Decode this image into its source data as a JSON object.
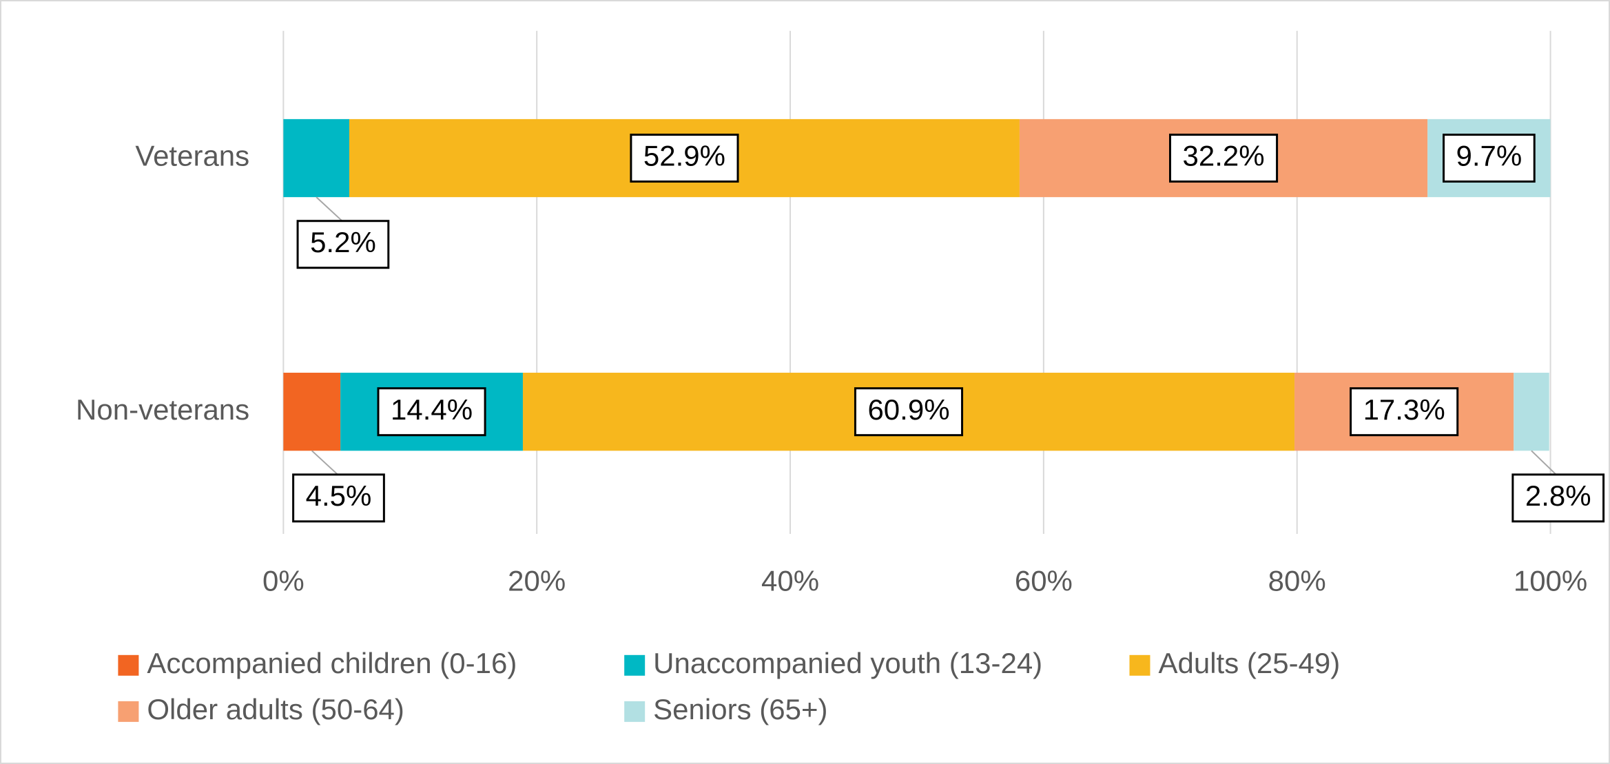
{
  "chart_data": {
    "type": "stacked-bar-horizontal",
    "categories": [
      "Veterans",
      "Non-veterans"
    ],
    "series": [
      {
        "name": "Accompanied children (0-16)",
        "color": "#F26522",
        "values": [
          0,
          4.5
        ],
        "value_labels": [
          null,
          "4.5%"
        ]
      },
      {
        "name": "Unaccompanied youth (13-24)",
        "color": "#00B8C4",
        "values": [
          5.2,
          14.4
        ],
        "value_labels": [
          "5.2%",
          "14.4%"
        ]
      },
      {
        "name": "Adults (25-49)",
        "color": "#F7B71D",
        "values": [
          52.9,
          60.9
        ],
        "value_labels": [
          "52.9%",
          "60.9%"
        ]
      },
      {
        "name": "Older adults (50-64)",
        "color": "#F7A072",
        "values": [
          32.2,
          17.3
        ],
        "value_labels": [
          "32.2%",
          "17.3%"
        ]
      },
      {
        "name": "Seniors (65+)",
        "color": "#B2E0E3",
        "values": [
          9.7,
          2.8
        ],
        "value_labels": [
          "9.7%",
          "2.8%"
        ]
      }
    ],
    "xlim": [
      0,
      100
    ],
    "xticks": [
      {
        "value": 0,
        "label": "0%"
      },
      {
        "value": 20,
        "label": "20%"
      },
      {
        "value": 40,
        "label": "40%"
      },
      {
        "value": 60,
        "label": "60%"
      },
      {
        "value": 80,
        "label": "80%"
      },
      {
        "value": 100,
        "label": "100%"
      }
    ],
    "grid": true,
    "legend": "bottom"
  }
}
